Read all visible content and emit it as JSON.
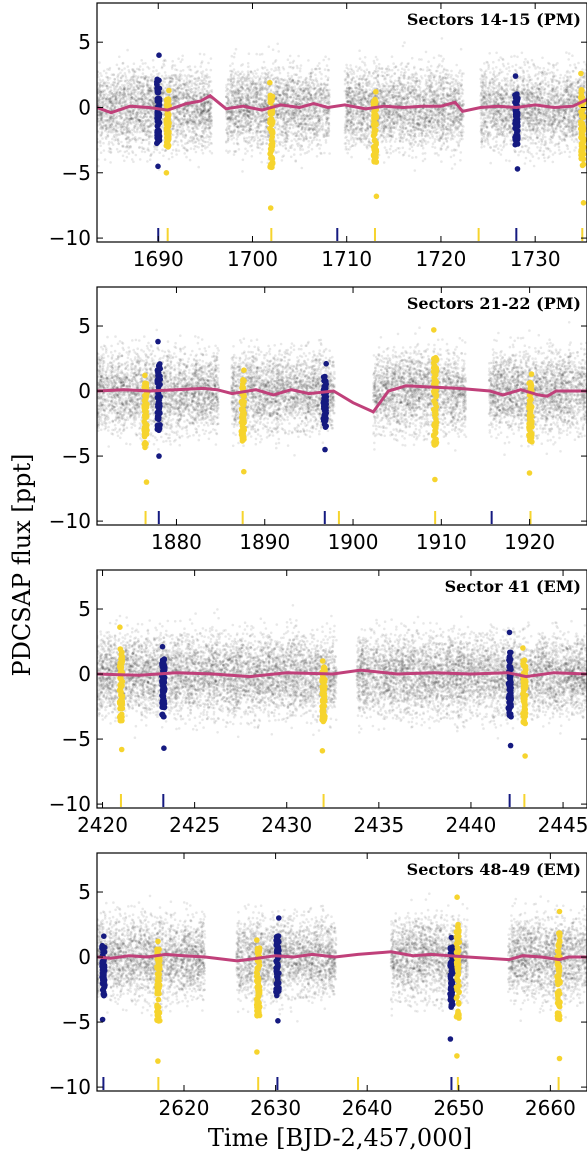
{
  "colors": {
    "points": "#000000",
    "trend": "#c0407a",
    "planet_b": "#151a80",
    "planet_c": "#f6d42e"
  },
  "figure": {
    "ylabel": "PDCSAP flux [ppt]",
    "xlabel": "Time [BJD-2,457,000]"
  },
  "chart_data": [
    {
      "type": "scatter",
      "title": "Sectors 14-15 (PM)",
      "xlim": [
        1683.5,
        1735.5
      ],
      "ylim": [
        -10.3,
        8.0
      ],
      "xticks": [
        1690,
        1700,
        1710,
        1720,
        1730
      ],
      "xtick_labels": [
        "1690",
        "1700",
        "1710",
        "1720",
        "1730"
      ],
      "yticks": [
        -10,
        -5,
        0,
        5
      ],
      "ytick_labels": [
        "−10",
        "−5",
        "0",
        "5"
      ],
      "coverage": [
        [
          1683.5,
          1695.7
        ],
        [
          1697.2,
          1708.2
        ],
        [
          1709.8,
          1722.4
        ],
        [
          1724.2,
          1735.5
        ]
      ],
      "trend": [
        [
          1683.5,
          0.0
        ],
        [
          1685,
          -0.4
        ],
        [
          1687,
          0.1
        ],
        [
          1689,
          0.0
        ],
        [
          1691,
          -0.2
        ],
        [
          1693,
          0.3
        ],
        [
          1694.5,
          0.5
        ],
        [
          1695.5,
          0.9
        ],
        [
          1697.2,
          -0.1
        ],
        [
          1699,
          0.1
        ],
        [
          1701,
          -0.2
        ],
        [
          1703,
          0.2
        ],
        [
          1705,
          0.0
        ],
        [
          1706.5,
          0.3
        ],
        [
          1708,
          0.0
        ],
        [
          1709.8,
          0.2
        ],
        [
          1712,
          -0.1
        ],
        [
          1714,
          0.1
        ],
        [
          1716,
          0.0
        ],
        [
          1718,
          0.1
        ],
        [
          1720,
          0.1
        ],
        [
          1721.5,
          0.4
        ],
        [
          1722.3,
          -0.3
        ],
        [
          1724.2,
          0.0
        ],
        [
          1726,
          0.1
        ],
        [
          1728,
          0.0
        ],
        [
          1730,
          0.2
        ],
        [
          1732,
          0.0
        ],
        [
          1734,
          0.1
        ],
        [
          1735.5,
          0.6
        ]
      ],
      "transits": [
        {
          "planet": "b",
          "t": 1690.0,
          "min": -4.5,
          "max": 4.0
        },
        {
          "planet": "c",
          "t": 1691.0,
          "min": -5.0,
          "max": 1.3
        },
        {
          "planet": "c",
          "t": 1702.0,
          "min": -7.7,
          "max": 1.9
        },
        {
          "planet": "b",
          "t": 1709.0,
          "min": null,
          "max": null
        },
        {
          "planet": "c",
          "t": 1713.0,
          "min": -6.8,
          "max": 1.2
        },
        {
          "planet": "c",
          "t": 1724.0,
          "min": null,
          "max": null
        },
        {
          "planet": "b",
          "t": 1728.0,
          "min": -4.7,
          "max": 2.4
        },
        {
          "planet": "c",
          "t": 1735.0,
          "min": -7.3,
          "max": 2.6
        }
      ]
    },
    {
      "type": "scatter",
      "title": "Sectors 21-22 (PM)",
      "xlim": [
        1871.0,
        1926.5
      ],
      "ylim": [
        -10.3,
        8.0
      ],
      "xticks": [
        1880,
        1890,
        1900,
        1910,
        1920
      ],
      "xtick_labels": [
        "1880",
        "1890",
        "1900",
        "1910",
        "1920"
      ],
      "yticks": [
        -10,
        -5,
        0,
        5
      ],
      "ytick_labels": [
        "−10",
        "−5",
        "0",
        "5"
      ],
      "coverage": [
        [
          1871.0,
          1884.8
        ],
        [
          1886.2,
          1897.9
        ],
        [
          1902.3,
          1912.8
        ],
        [
          1915.4,
          1926.5
        ]
      ],
      "trend": [
        [
          1871,
          0.0
        ],
        [
          1874,
          0.1
        ],
        [
          1877,
          0.0
        ],
        [
          1880,
          0.1
        ],
        [
          1883,
          0.2
        ],
        [
          1884.6,
          0.1
        ],
        [
          1886.3,
          -0.2
        ],
        [
          1889,
          0.1
        ],
        [
          1891,
          -0.3
        ],
        [
          1893,
          0.1
        ],
        [
          1895,
          -0.2
        ],
        [
          1897.8,
          0.0
        ],
        [
          1900,
          -0.9
        ],
        [
          1902.3,
          -1.6
        ],
        [
          1904,
          0.0
        ],
        [
          1906,
          0.4
        ],
        [
          1909,
          0.3
        ],
        [
          1912,
          0.2
        ],
        [
          1915.5,
          0.0
        ],
        [
          1917,
          -0.3
        ],
        [
          1919,
          0.1
        ],
        [
          1921,
          -0.3
        ],
        [
          1922,
          -0.4
        ],
        [
          1923,
          0.0
        ],
        [
          1926.5,
          0.0
        ]
      ],
      "transits": [
        {
          "planet": "c",
          "t": 1876.5,
          "min": -7.0,
          "max": 1.2
        },
        {
          "planet": "b",
          "t": 1878.0,
          "min": -5.0,
          "max": 3.8
        },
        {
          "planet": "c",
          "t": 1887.5,
          "min": -6.2,
          "max": 1.6
        },
        {
          "planet": "b",
          "t": 1896.8,
          "min": -4.5,
          "max": 2.1
        },
        {
          "planet": "c",
          "t": 1898.4,
          "min": null,
          "max": null
        },
        {
          "planet": "c",
          "t": 1909.3,
          "min": -6.8,
          "max": 4.7
        },
        {
          "planet": "b",
          "t": 1915.7,
          "min": null,
          "max": null
        },
        {
          "planet": "c",
          "t": 1920.1,
          "min": -6.3,
          "max": 1.3
        }
      ]
    },
    {
      "type": "scatter",
      "title": "Sector 41 (EM)",
      "xlim": [
        2419.7,
        2446.3
      ],
      "ylim": [
        -10.3,
        8.0
      ],
      "xticks": [
        2420,
        2425,
        2430,
        2435,
        2440,
        2445
      ],
      "xtick_labels": [
        "2420",
        "2425",
        "2430",
        "2435",
        "2440",
        "2445"
      ],
      "yticks": [
        -10,
        -5,
        0,
        5
      ],
      "ytick_labels": [
        "−10",
        "−5",
        "0",
        "5"
      ],
      "coverage": [
        [
          2419.7,
          2432.7
        ],
        [
          2433.8,
          2446.3
        ]
      ],
      "trend": [
        [
          2419.7,
          0.0
        ],
        [
          2422,
          -0.1
        ],
        [
          2424,
          0.1
        ],
        [
          2426,
          0.0
        ],
        [
          2428,
          -0.2
        ],
        [
          2430,
          0.1
        ],
        [
          2432.5,
          0.0
        ],
        [
          2434,
          0.3
        ],
        [
          2436,
          0.0
        ],
        [
          2438,
          0.1
        ],
        [
          2440,
          0.0
        ],
        [
          2442,
          0.1
        ],
        [
          2443,
          -0.2
        ],
        [
          2444.5,
          0.1
        ],
        [
          2446.3,
          0.0
        ]
      ],
      "transits": [
        {
          "planet": "c",
          "t": 2421.0,
          "min": -5.8,
          "max": 3.6
        },
        {
          "planet": "b",
          "t": 2423.3,
          "min": -5.7,
          "max": 2.1
        },
        {
          "planet": "c",
          "t": 2432.0,
          "min": -5.9,
          "max": 1.0
        },
        {
          "planet": "b",
          "t": 2442.1,
          "min": -5.5,
          "max": 3.2
        },
        {
          "planet": "c",
          "t": 2442.9,
          "min": -6.3,
          "max": 2.0
        }
      ]
    },
    {
      "type": "scatter",
      "title": "Sectors 48-49 (EM)",
      "xlim": [
        2610.5,
        2664.0
      ],
      "ylim": [
        -10.3,
        8.0
      ],
      "xticks": [
        2620,
        2630,
        2640,
        2650,
        2660
      ],
      "xtick_labels": [
        "2620",
        "2630",
        "2640",
        "2650",
        "2660"
      ],
      "yticks": [
        -10,
        -5,
        0,
        5
      ],
      "ytick_labels": [
        "−10",
        "−5",
        "0",
        "5"
      ],
      "coverage": [
        [
          2610.5,
          2622.3
        ],
        [
          2625.7,
          2636.6
        ],
        [
          2642.6,
          2651.0
        ],
        [
          2655.4,
          2664.0
        ]
      ],
      "trend": [
        [
          2610.5,
          0.0
        ],
        [
          2612,
          -0.1
        ],
        [
          2614,
          0.1
        ],
        [
          2616,
          0.0
        ],
        [
          2618,
          0.2
        ],
        [
          2620,
          0.1
        ],
        [
          2622.3,
          0.0
        ],
        [
          2625.8,
          -0.3
        ],
        [
          2628,
          -0.1
        ],
        [
          2630,
          0.1
        ],
        [
          2632,
          0.0
        ],
        [
          2634,
          0.2
        ],
        [
          2636.5,
          0.0
        ],
        [
          2639,
          0.2
        ],
        [
          2642.6,
          0.4
        ],
        [
          2645,
          0.1
        ],
        [
          2647,
          0.2
        ],
        [
          2649,
          0.1
        ],
        [
          2651,
          0.0
        ],
        [
          2655.5,
          -0.2
        ],
        [
          2657,
          0.1
        ],
        [
          2659,
          0.0
        ],
        [
          2661,
          -0.2
        ],
        [
          2662,
          0.0
        ],
        [
          2664,
          0.0
        ]
      ],
      "transits": [
        {
          "planet": "b",
          "t": 2611.2,
          "min": -4.8,
          "max": 1.6
        },
        {
          "planet": "c",
          "t": 2617.2,
          "min": -8.0,
          "max": 1.2
        },
        {
          "planet": "c",
          "t": 2628.1,
          "min": -7.3,
          "max": 1.3
        },
        {
          "planet": "b",
          "t": 2630.2,
          "min": -4.9,
          "max": 3.0
        },
        {
          "planet": "c",
          "t": 2639.0,
          "min": null,
          "max": null
        },
        {
          "planet": "b",
          "t": 2649.2,
          "min": -6.3,
          "max": 1.5
        },
        {
          "planet": "c",
          "t": 2649.9,
          "min": -7.6,
          "max": 4.6
        },
        {
          "planet": "c",
          "t": 2660.9,
          "min": -7.8,
          "max": 3.5
        }
      ]
    }
  ]
}
